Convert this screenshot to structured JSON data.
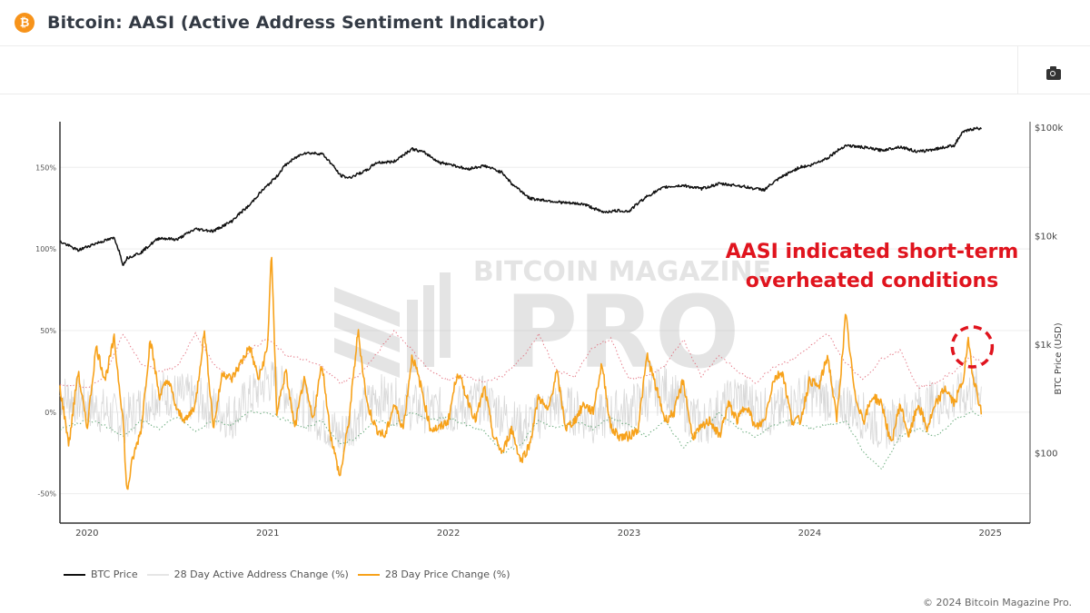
{
  "header": {
    "title": "Bitcoin: AASI (Active Address Sentiment Indicator)",
    "logo_glyph": "₿",
    "logo_icon": "bitcoin-icon"
  },
  "toolbar": {
    "screenshot_icon": "camera-icon"
  },
  "watermark": {
    "line1": "BITCOIN MAGAZINE",
    "line2": "PRO"
  },
  "annotation": {
    "line1": "AASI indicated short-term",
    "line2": "overheated conditions",
    "color": "#e0141e"
  },
  "footer": {
    "copyright": "© 2024 Bitcoin Magazine Pro."
  },
  "colors": {
    "btc_price": "#111111",
    "active_address": "#d8d8d8",
    "price_change": "#f7a21b",
    "upper_band": "#e06070",
    "lower_band": "#4a9a60",
    "annotation": "#e0141e"
  },
  "chart_data": {
    "type": "line",
    "title": "Bitcoin: AASI (Active Address Sentiment Indicator)",
    "xlabel": "",
    "ylabel_left": "",
    "ylabel_right": "BTC Price (USD)",
    "x_ticks": [
      "2020",
      "2021",
      "2022",
      "2023",
      "2024",
      "2025"
    ],
    "x_range": [
      2019.85,
      2025.22
    ],
    "y_left_ticks": [
      "-50%",
      "0%",
      "50%",
      "100%",
      "150%"
    ],
    "y_left_tick_values": [
      -50,
      0,
      50,
      100,
      150
    ],
    "y_left_range": [
      -68,
      178
    ],
    "y_right_ticks": [
      "$100",
      "$1k",
      "$10k",
      "$100k"
    ],
    "y_right_tick_values": [
      100,
      1000,
      10000,
      100000
    ],
    "y_right_range_log10": [
      1.35,
      5.05
    ],
    "grid": true,
    "legend_position": "bottom-left",
    "series": [
      {
        "name": "BTC Price",
        "axis": "right",
        "style": "solid",
        "x": [
          2019.85,
          2019.95,
          2020.05,
          2020.15,
          2020.2,
          2020.22,
          2020.3,
          2020.4,
          2020.5,
          2020.6,
          2020.7,
          2020.8,
          2020.9,
          2021.0,
          2021.05,
          2021.1,
          2021.2,
          2021.3,
          2021.4,
          2021.45,
          2021.55,
          2021.6,
          2021.7,
          2021.8,
          2021.87,
          2021.95,
          2022.0,
          2022.1,
          2022.2,
          2022.3,
          2022.35,
          2022.45,
          2022.55,
          2022.65,
          2022.75,
          2022.85,
          2022.95,
          2023.0,
          2023.1,
          2023.2,
          2023.3,
          2023.4,
          2023.5,
          2023.6,
          2023.7,
          2023.75,
          2023.85,
          2023.95,
          2024.0,
          2024.1,
          2024.2,
          2024.3,
          2024.4,
          2024.5,
          2024.6,
          2024.7,
          2024.8,
          2024.85,
          2024.9,
          2024.95
        ],
        "values": [
          8800,
          7300,
          8500,
          9500,
          5300,
          6200,
          7000,
          9500,
          9200,
          11500,
          11000,
          13500,
          19000,
          29000,
          35000,
          45000,
          58000,
          57000,
          36000,
          34000,
          40000,
          47000,
          48000,
          63000,
          58000,
          47000,
          46000,
          41000,
          44000,
          38000,
          30000,
          22000,
          21000,
          20000,
          19500,
          16500,
          17000,
          16700,
          23000,
          28000,
          29000,
          27000,
          30000,
          29000,
          27000,
          26500,
          35000,
          43000,
          44000,
          52000,
          68000,
          65000,
          61000,
          66000,
          59000,
          63000,
          68000,
          90000,
          96000,
          98000
        ]
      },
      {
        "name": "28 Day Active Address Change (%)",
        "axis": "left",
        "style": "thin-noisy",
        "x": [
          2019.85,
          2020.0,
          2020.2,
          2020.4,
          2020.6,
          2020.8,
          2021.0,
          2021.2,
          2021.4,
          2021.6,
          2021.8,
          2022.0,
          2022.2,
          2022.4,
          2022.6,
          2022.8,
          2023.0,
          2023.2,
          2023.4,
          2023.6,
          2023.8,
          2024.0,
          2024.2,
          2024.4,
          2024.6,
          2024.8,
          2024.95
        ],
        "values": [
          10,
          5,
          -5,
          12,
          8,
          -3,
          20,
          5,
          -15,
          10,
          3,
          0,
          8,
          -10,
          5,
          -5,
          2,
          15,
          -8,
          10,
          -2,
          12,
          5,
          -10,
          3,
          8,
          15
        ]
      },
      {
        "name": "28 Day Price Change (%)",
        "axis": "left",
        "style": "solid",
        "x": [
          2019.85,
          2019.9,
          2019.95,
          2020.0,
          2020.05,
          2020.1,
          2020.15,
          2020.2,
          2020.22,
          2020.25,
          2020.3,
          2020.35,
          2020.4,
          2020.45,
          2020.5,
          2020.55,
          2020.6,
          2020.65,
          2020.7,
          2020.75,
          2020.8,
          2020.85,
          2020.9,
          2020.95,
          2021.0,
          2021.02,
          2021.05,
          2021.1,
          2021.15,
          2021.2,
          2021.25,
          2021.3,
          2021.35,
          2021.4,
          2021.45,
          2021.5,
          2021.55,
          2021.6,
          2021.65,
          2021.7,
          2021.75,
          2021.8,
          2021.85,
          2021.9,
          2021.95,
          2022.0,
          2022.05,
          2022.1,
          2022.15,
          2022.2,
          2022.25,
          2022.3,
          2022.35,
          2022.4,
          2022.45,
          2022.5,
          2022.55,
          2022.6,
          2022.65,
          2022.7,
          2022.75,
          2022.8,
          2022.85,
          2022.9,
          2022.95,
          2023.0,
          2023.05,
          2023.1,
          2023.15,
          2023.2,
          2023.25,
          2023.3,
          2023.35,
          2023.4,
          2023.45,
          2023.5,
          2023.55,
          2023.6,
          2023.65,
          2023.7,
          2023.75,
          2023.8,
          2023.85,
          2023.9,
          2023.95,
          2024.0,
          2024.05,
          2024.1,
          2024.15,
          2024.2,
          2024.25,
          2024.3,
          2024.35,
          2024.4,
          2024.45,
          2024.5,
          2024.55,
          2024.6,
          2024.65,
          2024.7,
          2024.75,
          2024.8,
          2024.85,
          2024.88,
          2024.9,
          2024.93,
          2024.95
        ],
        "values": [
          15,
          -20,
          25,
          -10,
          40,
          20,
          45,
          -5,
          -50,
          -30,
          -10,
          45,
          10,
          20,
          0,
          -5,
          5,
          50,
          -10,
          25,
          20,
          30,
          40,
          20,
          40,
          100,
          0,
          25,
          -10,
          20,
          -5,
          30,
          -15,
          -40,
          -5,
          50,
          5,
          -10,
          -15,
          5,
          -10,
          35,
          15,
          -10,
          -10,
          -5,
          25,
          10,
          -5,
          15,
          -15,
          -25,
          -10,
          -30,
          -20,
          10,
          0,
          25,
          -10,
          -5,
          5,
          0,
          30,
          -10,
          -15,
          -15,
          -10,
          35,
          15,
          -5,
          0,
          20,
          -15,
          -10,
          -5,
          -15,
          5,
          -5,
          5,
          -10,
          -5,
          20,
          25,
          -5,
          -5,
          20,
          15,
          35,
          -5,
          60,
          10,
          -5,
          10,
          5,
          -20,
          5,
          -15,
          5,
          -10,
          5,
          15,
          5,
          20,
          45,
          25,
          10,
          0
        ]
      },
      {
        "name": "Upper Band (unlabeled)",
        "axis": "left",
        "style": "dotted",
        "x": [
          2019.85,
          2020.0,
          2020.1,
          2020.2,
          2020.3,
          2020.4,
          2020.5,
          2020.6,
          2020.7,
          2020.8,
          2020.9,
          2021.0,
          2021.1,
          2021.2,
          2021.3,
          2021.4,
          2021.5,
          2021.6,
          2021.7,
          2021.8,
          2021.9,
          2022.0,
          2022.1,
          2022.2,
          2022.3,
          2022.4,
          2022.5,
          2022.6,
          2022.7,
          2022.8,
          2022.9,
          2023.0,
          2023.1,
          2023.2,
          2023.3,
          2023.4,
          2023.5,
          2023.6,
          2023.7,
          2023.8,
          2023.9,
          2024.0,
          2024.1,
          2024.2,
          2024.3,
          2024.4,
          2024.5,
          2024.6,
          2024.7,
          2024.8,
          2024.9,
          2024.95
        ],
        "values": [
          17,
          15,
          22,
          48,
          30,
          25,
          28,
          48,
          30,
          20,
          38,
          45,
          35,
          32,
          28,
          18,
          22,
          35,
          50,
          38,
          25,
          20,
          22,
          18,
          22,
          32,
          48,
          25,
          22,
          40,
          45,
          20,
          22,
          28,
          45,
          22,
          35,
          25,
          18,
          28,
          32,
          40,
          48,
          30,
          20,
          33,
          38,
          15,
          18,
          25,
          35,
          30
        ]
      },
      {
        "name": "Lower Band (unlabeled)",
        "axis": "left",
        "style": "dotted",
        "x": [
          2019.85,
          2020.0,
          2020.1,
          2020.2,
          2020.3,
          2020.4,
          2020.5,
          2020.6,
          2020.7,
          2020.8,
          2020.9,
          2021.0,
          2021.1,
          2021.2,
          2021.3,
          2021.4,
          2021.5,
          2021.6,
          2021.7,
          2021.8,
          2021.9,
          2022.0,
          2022.1,
          2022.2,
          2022.3,
          2022.4,
          2022.5,
          2022.6,
          2022.7,
          2022.8,
          2022.9,
          2023.0,
          2023.1,
          2023.2,
          2023.3,
          2023.4,
          2023.5,
          2023.6,
          2023.7,
          2023.8,
          2023.9,
          2024.0,
          2024.1,
          2024.2,
          2024.3,
          2024.4,
          2024.5,
          2024.6,
          2024.7,
          2024.8,
          2024.9,
          2024.95
        ],
        "values": [
          -10,
          -5,
          -8,
          -15,
          -5,
          -10,
          -3,
          -12,
          -5,
          -8,
          0,
          0,
          -5,
          -10,
          -5,
          -20,
          -15,
          -5,
          -8,
          0,
          -5,
          -3,
          -8,
          -12,
          -25,
          -20,
          -5,
          -10,
          -5,
          -10,
          -3,
          -8,
          -15,
          -5,
          -22,
          -10,
          0,
          -10,
          -15,
          -8,
          -5,
          -10,
          -8,
          -5,
          -25,
          -35,
          -15,
          -10,
          -15,
          -5,
          0,
          -3
        ]
      }
    ],
    "annotations": [
      {
        "text": "AASI indicated short-term overheated conditions",
        "target_x": 2024.9,
        "target_y": 40,
        "marker": "dashed-circle"
      }
    ],
    "watermark": "BITCOIN MAGAZINE PRO"
  }
}
